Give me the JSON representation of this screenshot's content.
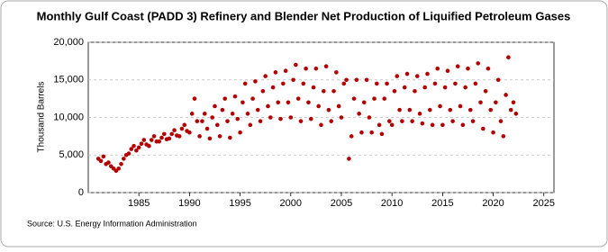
{
  "chart_data": {
    "type": "scatter",
    "title": "Monthly Gulf Coast (PADD 3) Refinery and Blender Net Production of Liquified Petroleum Gases",
    "y_label": "Thousand Barrels",
    "source": "Source: U.S. Energy Information Administration",
    "color": "#b30000",
    "grid": true,
    "xlim": [
      1980,
      2026
    ],
    "xticks": [
      1985,
      1990,
      1995,
      2000,
      2005,
      2010,
      2015,
      2020,
      2025
    ],
    "ylim": [
      0,
      20000
    ],
    "yticks": [
      0,
      {
        "value": 5000,
        "label": "5,000"
      },
      {
        "value": 10000,
        "label": "10,000"
      },
      {
        "value": 15000,
        "label": "15,000"
      },
      {
        "value": 20000,
        "label": "20,000"
      }
    ],
    "x": [
      1981.0,
      1981.25,
      1981.5,
      1981.75,
      1982.0,
      1982.25,
      1982.5,
      1982.75,
      1983.0,
      1983.25,
      1983.5,
      1983.75,
      1984.0,
      1984.25,
      1984.5,
      1984.75,
      1985.0,
      1985.25,
      1985.5,
      1985.75,
      1986.0,
      1986.25,
      1986.5,
      1986.75,
      1987.0,
      1987.25,
      1987.5,
      1987.75,
      1988.0,
      1988.25,
      1988.5,
      1988.75,
      1989.0,
      1989.25,
      1989.5,
      1989.75,
      1990.0,
      1990.25,
      1990.5,
      1990.75,
      1991.0,
      1991.25,
      1991.5,
      1991.75,
      1992.0,
      1992.25,
      1992.5,
      1992.75,
      1993.0,
      1993.25,
      1993.5,
      1993.75,
      1994.0,
      1994.25,
      1994.5,
      1994.75,
      1995.0,
      1995.25,
      1995.5,
      1995.75,
      1996.0,
      1996.25,
      1996.5,
      1996.75,
      1997.0,
      1997.25,
      1997.5,
      1997.75,
      1998.0,
      1998.25,
      1998.5,
      1998.75,
      1999.0,
      1999.25,
      1999.5,
      1999.75,
      2000.0,
      2000.25,
      2000.5,
      2000.75,
      2001.0,
      2001.25,
      2001.5,
      2001.75,
      2002.0,
      2002.25,
      2002.5,
      2002.75,
      2003.0,
      2003.25,
      2003.5,
      2003.75,
      2004.0,
      2004.25,
      2004.5,
      2004.75,
      2005.0,
      2005.25,
      2005.5,
      2005.75,
      2006.0,
      2006.25,
      2006.5,
      2006.75,
      2007.0,
      2007.25,
      2007.5,
      2007.75,
      2008.0,
      2008.25,
      2008.5,
      2008.75,
      2009.0,
      2009.25,
      2009.5,
      2009.75,
      2010.0,
      2010.25,
      2010.5,
      2010.75,
      2011.0,
      2011.25,
      2011.5,
      2011.75,
      2012.0,
      2012.25,
      2012.5,
      2012.75,
      2013.0,
      2013.25,
      2013.5,
      2013.75,
      2014.0,
      2014.25,
      2014.5,
      2014.75,
      2015.0,
      2015.25,
      2015.5,
      2015.75,
      2016.0,
      2016.25,
      2016.5,
      2016.75,
      2017.0,
      2017.25,
      2017.5,
      2017.75,
      2018.0,
      2018.25,
      2018.5,
      2018.75,
      2019.0,
      2019.25,
      2019.5,
      2019.75,
      2020.0,
      2020.25,
      2020.5,
      2020.75,
      2021.0,
      2021.25,
      2021.5,
      2021.75,
      2022.0,
      2022.25
    ],
    "values": [
      4500,
      4200,
      4800,
      3800,
      4000,
      3500,
      3200,
      2900,
      3200,
      3800,
      4500,
      5000,
      5200,
      5800,
      6200,
      5600,
      6000,
      6500,
      7000,
      6400,
      6200,
      7000,
      7500,
      6800,
      6800,
      7300,
      7800,
      7100,
      7200,
      7800,
      8300,
      7600,
      7500,
      8500,
      9000,
      8200,
      8000,
      10500,
      12500,
      9500,
      7500,
      9500,
      10500,
      8500,
      7200,
      10000,
      11500,
      9000,
      7500,
      11000,
      12500,
      9500,
      7300,
      10500,
      12800,
      9800,
      8000,
      12000,
      14500,
      10500,
      9000,
      12500,
      14800,
      11000,
      9500,
      13500,
      15500,
      11500,
      10000,
      14000,
      16000,
      12000,
      9800,
      14500,
      16200,
      12000,
      10000,
      15000,
      17000,
      12500,
      9500,
      14500,
      16500,
      12000,
      9800,
      14000,
      16500,
      11500,
      9000,
      13500,
      16800,
      11000,
      9500,
      13500,
      16000,
      11500,
      10000,
      14500,
      15000,
      4500,
      7500,
      12500,
      15000,
      10500,
      8000,
      12000,
      15000,
      10000,
      8000,
      12500,
      14500,
      9000,
      7800,
      12500,
      14500,
      9500,
      9000,
      13500,
      15500,
      11000,
      9500,
      14000,
      15800,
      11000,
      9500,
      13500,
      15500,
      10500,
      9200,
      14000,
      15800,
      11000,
      9000,
      14500,
      16500,
      11500,
      9000,
      14000,
      16200,
      11000,
      9500,
      14500,
      16800,
      11500,
      9000,
      14000,
      16500,
      11000,
      9500,
      14500,
      17200,
      12000,
      8500,
      13500,
      16500,
      11000,
      8000,
      12000,
      15000,
      9500,
      7500,
      13000,
      18000,
      11000,
      12000,
      10500
    ]
  }
}
